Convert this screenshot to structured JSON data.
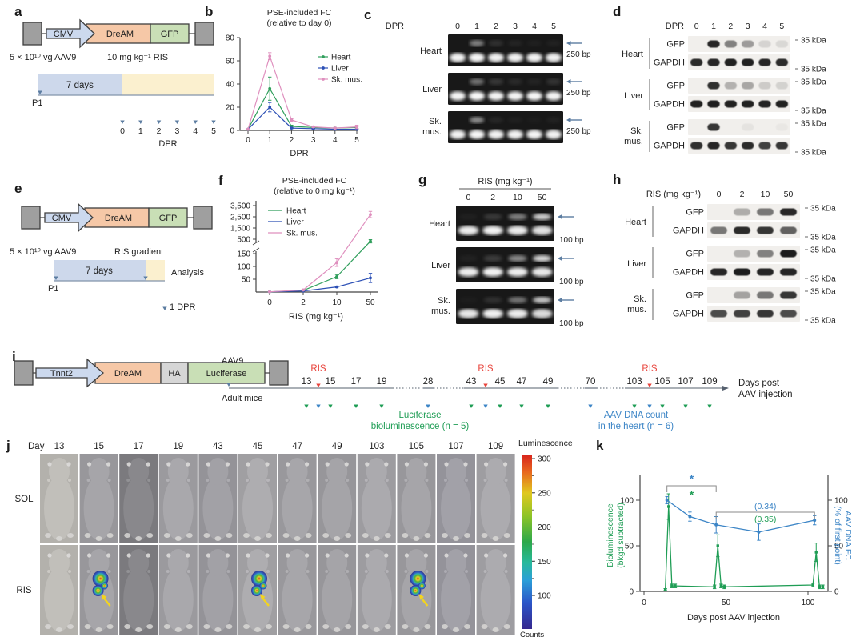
{
  "colors": {
    "heart_green": "#2f9e5b",
    "liver_blue": "#2b4fb5",
    "skmus_pink": "#df8fbe",
    "k_green": "#1f9d55",
    "k_blue": "#3c85c6",
    "ris_red": "#e8423a",
    "slate_arrow": "#5c7da1",
    "promoter_fill": "#ccd9ee",
    "dream_fill": "#f6c8a7",
    "gfp_fill": "#c9dfb6",
    "luciferase_fill": "#c9dfb6",
    "ha_fill": "#d6d6d6",
    "itr_gray": "#9f9f9f",
    "bar_blue": "#cdd8eb",
    "bar_yellow": "#fbf0cf"
  },
  "panels": {
    "a": {
      "label": "a",
      "construct": {
        "promoter": "CMV",
        "genes": [
          {
            "label": "DreAM"
          },
          {
            "label": "GFP"
          }
        ]
      },
      "dose": "5 × 10¹⁰ vg AAV9",
      "treatment": "10 mg kg⁻¹ RIS",
      "duration": "7 days",
      "start": "P1",
      "axis_ticks": [
        "0",
        "1",
        "2",
        "3",
        "4",
        "5"
      ],
      "axis_label": "DPR"
    },
    "b": {
      "label": "b"
    },
    "c": {
      "label": "c",
      "header": "DPR",
      "lanes": [
        "0",
        "1",
        "2",
        "3",
        "4",
        "5"
      ],
      "tissues": [
        "Heart",
        "Liver",
        "Sk.\nmus."
      ],
      "size_marker": "250 bp",
      "upper_bands": [
        [
          0,
          0.45,
          0.1,
          0.05,
          0.03,
          0.04
        ],
        [
          0,
          0.4,
          0.14,
          0.08,
          0.05,
          0.12
        ],
        [
          0,
          0.5,
          0.06,
          0.03,
          0.02,
          0.04
        ]
      ],
      "lower_bands": [
        [
          0.95,
          0.97,
          0.95,
          0.95,
          0.96,
          0.95
        ],
        [
          0.95,
          0.97,
          0.95,
          0.95,
          0.96,
          0.95
        ],
        [
          0.95,
          0.97,
          0.95,
          0.95,
          0.96,
          0.95
        ]
      ]
    },
    "d": {
      "label": "d",
      "header": "DPR",
      "lanes": [
        "0",
        "1",
        "2",
        "3",
        "4",
        "5"
      ],
      "tissues": [
        "Heart",
        "Liver",
        "Sk.\nmus."
      ],
      "proteins": [
        "GFP",
        "GAPDH"
      ],
      "kda": "35 kDa",
      "gfp": [
        [
          0,
          0.92,
          0.5,
          0.38,
          0.12,
          0.1
        ],
        [
          0,
          0.88,
          0.28,
          0.33,
          0.16,
          0.13
        ],
        [
          0,
          0.85,
          0.02,
          0.05,
          0.02,
          0.03
        ]
      ],
      "gapdh": [
        [
          0.9,
          0.92,
          0.95,
          0.95,
          0.92,
          0.9
        ],
        [
          0.95,
          0.96,
          0.95,
          0.95,
          0.94,
          0.95
        ],
        [
          0.88,
          0.92,
          0.85,
          0.9,
          0.8,
          0.85
        ]
      ]
    },
    "e": {
      "label": "e",
      "construct": {
        "promoter": "CMV",
        "genes": [
          {
            "label": "DreAM"
          },
          {
            "label": "GFP"
          }
        ]
      },
      "dose": "5 × 10¹⁰ vg AAV9",
      "treatment": "RIS gradient",
      "duration": "7 days",
      "start": "P1",
      "analysis": "Analysis",
      "endpoint": "1 DPR"
    },
    "f": {
      "label": "f"
    },
    "g": {
      "label": "g",
      "header": "RIS (mg kg⁻¹)",
      "lanes": [
        "0",
        "2",
        "10",
        "50"
      ],
      "tissues": [
        "Heart",
        "Liver",
        "Sk.\nmus."
      ],
      "size_marker": "100 bp",
      "upper_bands": [
        [
          0.03,
          0.14,
          0.45,
          0.8
        ],
        [
          0.04,
          0.16,
          0.5,
          0.85
        ],
        [
          0.02,
          0.1,
          0.4,
          0.75
        ]
      ],
      "lower_bands": [
        [
          0.92,
          0.95,
          0.92,
          0.88
        ],
        [
          0.92,
          0.95,
          0.92,
          0.9
        ],
        [
          0.9,
          0.94,
          0.92,
          0.85
        ]
      ]
    },
    "h": {
      "label": "h",
      "header": "RIS (mg kg⁻¹)",
      "lanes": [
        "0",
        "2",
        "10",
        "50"
      ],
      "tissues": [
        "Heart",
        "Liver",
        "Sk.\nmus."
      ],
      "proteins": [
        "GFP",
        "GAPDH"
      ],
      "kda": "35 kDa",
      "gfp": [
        [
          0,
          0.3,
          0.55,
          0.92
        ],
        [
          0,
          0.28,
          0.5,
          0.97
        ],
        [
          0,
          0.35,
          0.55,
          0.85
        ]
      ],
      "gapdh": [
        [
          0.55,
          0.9,
          0.85,
          0.65
        ],
        [
          0.92,
          0.97,
          0.93,
          0.93
        ],
        [
          0.75,
          0.8,
          0.85,
          0.75
        ]
      ]
    },
    "i": {
      "label": "i",
      "construct": {
        "promoter": "Tnnt2",
        "genes": [
          {
            "label": "DreAM"
          },
          {
            "label": "HA"
          },
          {
            "label": "Luciferase"
          }
        ]
      },
      "aav": "AAV9",
      "subject": "Adult mice",
      "ris": "RIS",
      "green_days": [
        "13",
        "15",
        "17",
        "19",
        "43",
        "45",
        "47",
        "49",
        "103",
        "105",
        "107",
        "109"
      ],
      "blue_only_days": [
        "28",
        "70"
      ],
      "legend_green": "Luciferase\nbioluminescence (n = 5)",
      "legend_blue": "AAV DNA count\nin the heart (n = 6)",
      "axis_label": "Days post\nAAV injection"
    },
    "j": {
      "label": "j",
      "day_header": "Day",
      "days": [
        "13",
        "15",
        "17",
        "19",
        "43",
        "45",
        "47",
        "49",
        "103",
        "105",
        "107",
        "109"
      ],
      "rows": [
        "SOL",
        "RIS"
      ],
      "signal_cols": [
        1,
        5,
        9
      ],
      "colorbar": {
        "title": "Luminescence",
        "ticks": [
          "300",
          "250",
          "200",
          "150",
          "100"
        ],
        "unit": "Counts"
      }
    },
    "k": {
      "label": "k"
    }
  },
  "chart_data": [
    {
      "id": "panel-b",
      "type": "line",
      "title": "PSE-included FC\n(relative to day 0)",
      "x": [
        0,
        1,
        2,
        3,
        4,
        5
      ],
      "xlabel": "DPR",
      "ylim": [
        0,
        80
      ],
      "yticks": [
        0,
        20,
        40,
        60,
        80
      ],
      "series": [
        {
          "name": "Heart",
          "color": "#2f9e5b",
          "values": [
            1,
            36,
            3.5,
            2.5,
            2,
            2.5
          ],
          "errors": [
            0.3,
            10,
            1,
            0.5,
            0.5,
            1
          ]
        },
        {
          "name": "Liver",
          "color": "#2b4fb5",
          "values": [
            1,
            20,
            2,
            1.5,
            1,
            1
          ],
          "errors": [
            0.3,
            4,
            0.5,
            0.3,
            0.3,
            0.3
          ]
        },
        {
          "name": "Sk. mus.",
          "color": "#df8fbe",
          "values": [
            1,
            64,
            9,
            3,
            2,
            3
          ],
          "errors": [
            0.3,
            3,
            1,
            0.5,
            0.5,
            1.5
          ]
        }
      ]
    },
    {
      "id": "panel-f",
      "type": "line-broken-y",
      "title": "PSE-included FC\n(relative to 0 mg kg⁻¹)",
      "categories": [
        "0",
        "2",
        "10",
        "50"
      ],
      "xlabel": "RIS (mg kg⁻¹)",
      "yticks_upper_labels": [
        "3,500",
        "2,500",
        "1,500",
        "500"
      ],
      "yticks_upper_values": [
        3500,
        2500,
        1500,
        500
      ],
      "yticks_lower_values": [
        150,
        100,
        50
      ],
      "series": [
        {
          "name": "Heart",
          "color": "#2f9e5b",
          "values": [
            1,
            6,
            60,
            450
          ],
          "errors": [
            0.5,
            1,
            8,
            40
          ]
        },
        {
          "name": "Liver",
          "color": "#2b4fb5",
          "values": [
            1,
            4,
            20,
            55
          ],
          "errors": [
            0.5,
            1,
            3,
            18
          ]
        },
        {
          "name": "Sk. mus.",
          "color": "#df8fbe",
          "values": [
            1,
            8,
            115,
            2700
          ],
          "errors": [
            0.5,
            2,
            15,
            280
          ]
        }
      ]
    },
    {
      "id": "panel-k",
      "type": "dual-line",
      "xlabel": "Days post AAV injection",
      "xticks": [
        0,
        50,
        100
      ],
      "left_axis": {
        "label": "Bioluminescence\n(bkgd subtracted)",
        "color": "#1f9d55",
        "ticks": [
          0,
          50,
          100
        ]
      },
      "right_axis": {
        "label": "AAV DNA FC\n(% of first point)",
        "color": "#3c85c6",
        "ticks": [
          0,
          50,
          100
        ]
      },
      "series": [
        {
          "name": "Bioluminescence",
          "axis": "left",
          "color": "#1f9d55",
          "x": [
            13,
            15,
            17,
            19,
            43,
            45,
            47,
            49,
            103,
            105,
            107,
            109
          ],
          "values": [
            2,
            93,
            6,
            6,
            5,
            50,
            6,
            5,
            7,
            43,
            5,
            5
          ],
          "errors": [
            1,
            14,
            2,
            2,
            2,
            12,
            2,
            2,
            2,
            10,
            2,
            2
          ]
        },
        {
          "name": "AAV DNA FC",
          "axis": "right",
          "color": "#3c85c6",
          "x": [
            14,
            28,
            44,
            70,
            104
          ],
          "values": [
            100,
            82,
            73,
            65,
            78
          ],
          "errors": [
            4,
            5,
            9,
            9,
            5
          ]
        }
      ],
      "annotations": [
        {
          "text": "*",
          "color": "#3c85c6",
          "span": [
            14,
            44
          ]
        },
        {
          "text": "*",
          "color": "#1f9d55",
          "span": [
            14,
            44
          ]
        },
        {
          "text": "(0.34)",
          "color": "#3c85c6",
          "span": [
            44,
            104
          ]
        },
        {
          "text": "(0.35)",
          "color": "#1f9d55",
          "span": [
            44,
            104
          ]
        }
      ]
    }
  ]
}
